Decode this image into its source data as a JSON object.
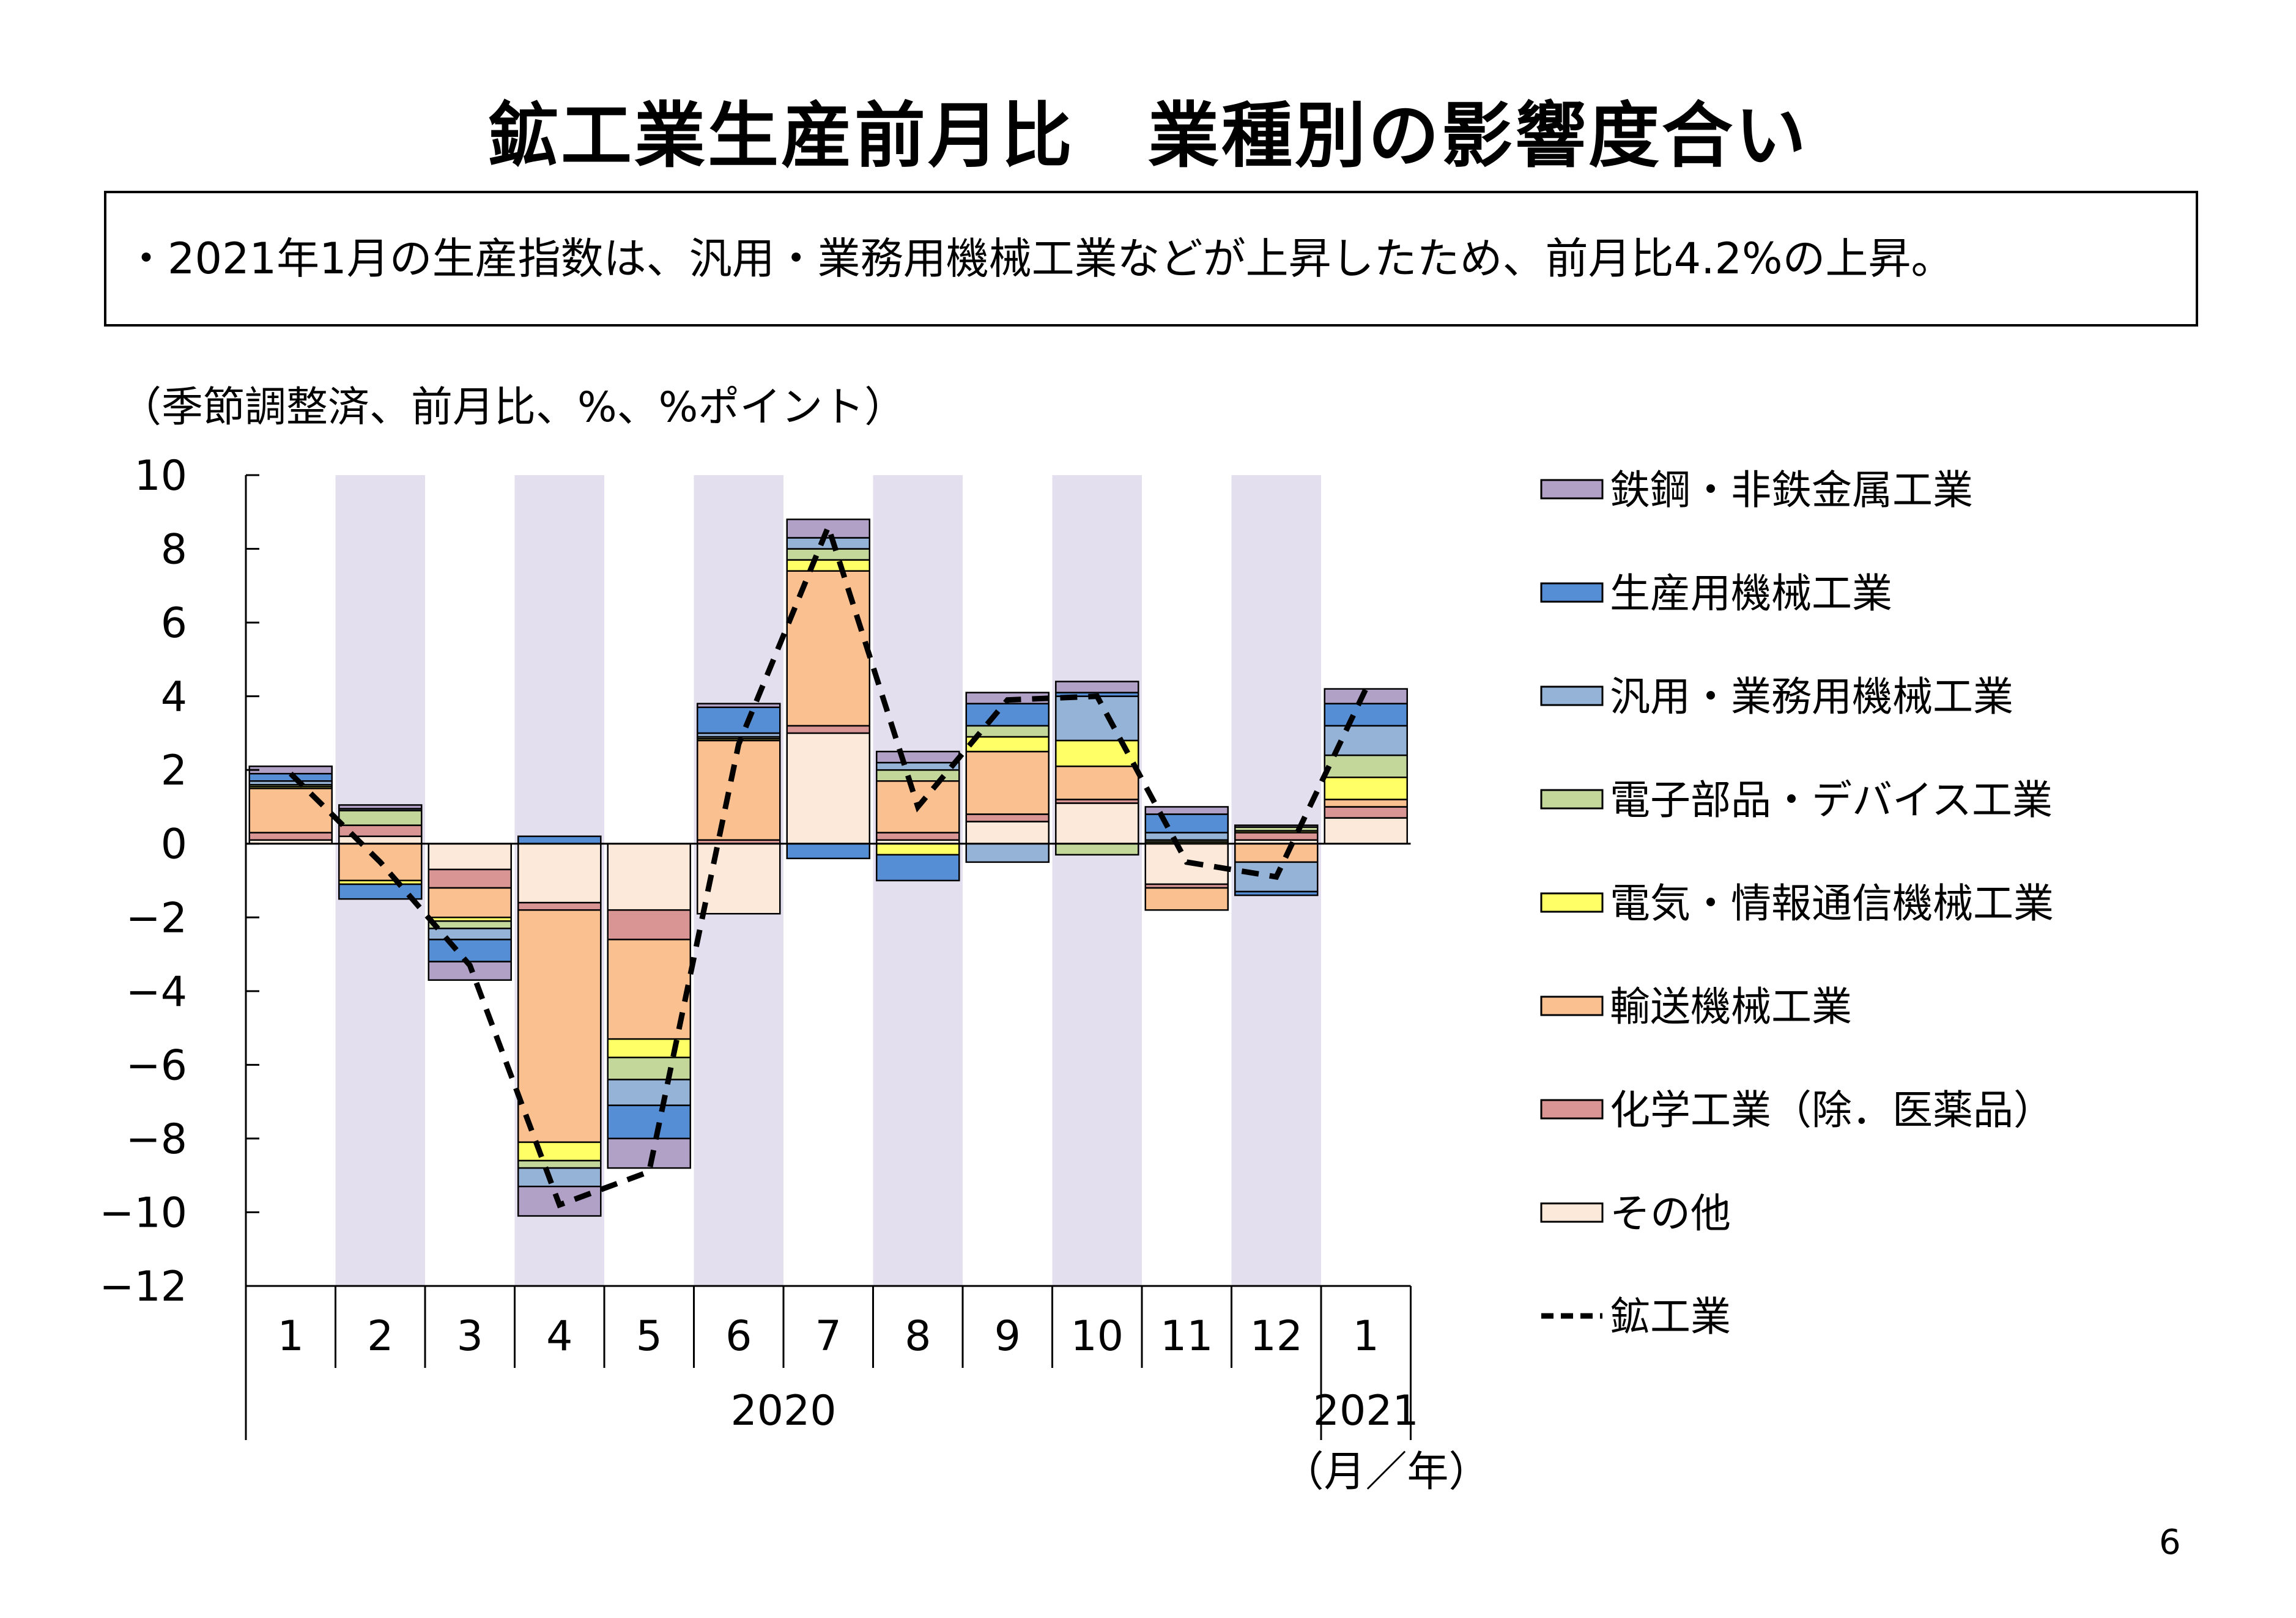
{
  "title": "鉱工業生産前月比　業種別の影響度合い",
  "summary": "・2021年1月の生産指数は、汎用・業務用機械工業などが上昇したため、前月比4.2%の上昇。",
  "units_note": "（季節調整済、前月比、%、%ポイント）",
  "page_number": "6",
  "chart_data": {
    "type": "bar",
    "stacked": true,
    "categories": [
      "1",
      "2",
      "3",
      "4",
      "5",
      "6",
      "7",
      "8",
      "9",
      "10",
      "11",
      "12",
      "1"
    ],
    "year_labels": [
      {
        "label": "2020",
        "from": 0,
        "to": 11
      },
      {
        "label": "2021",
        "from": 12,
        "to": 12
      }
    ],
    "xlabel": "（月／年）",
    "ylim": [
      -12,
      10
    ],
    "yticks": [
      10,
      8,
      6,
      4,
      2,
      0,
      -2,
      -4,
      -6,
      -8,
      -10,
      -12
    ],
    "shaded_categories": [
      1,
      3,
      5,
      7,
      9,
      11
    ],
    "shade_color": "#e3dfee",
    "series": [
      {
        "name": "その他",
        "color": "#fde9d9",
        "values": [
          0.1,
          0.2,
          -0.7,
          -1.6,
          -1.8,
          -1.9,
          3.0,
          0.1,
          0.6,
          1.1,
          -1.1,
          0.1,
          0.7
        ]
      },
      {
        "name": "化学工業（除．医薬品）",
        "color": "#d99594",
        "values": [
          0.2,
          0.3,
          -0.5,
          -0.2,
          -0.8,
          0.1,
          0.2,
          0.2,
          0.2,
          0.1,
          -0.1,
          0.2,
          0.3
        ]
      },
      {
        "name": "輸送機械工業",
        "color": "#fac090",
        "values": [
          1.2,
          -1.0,
          -0.8,
          -6.3,
          -2.7,
          2.7,
          4.2,
          1.4,
          1.7,
          0.9,
          -0.6,
          -0.5,
          0.2
        ]
      },
      {
        "name": "電気・情報通信機械工業",
        "color": "#ffff66",
        "values": [
          0.05,
          -0.1,
          -0.1,
          -0.5,
          -0.5,
          0.05,
          0.3,
          -0.3,
          0.4,
          0.7,
          0.05,
          0.05,
          0.6
        ]
      },
      {
        "name": "電子部品・デバイス工業",
        "color": "#c4d79b",
        "values": [
          0.05,
          0.4,
          -0.2,
          -0.2,
          -0.6,
          0.05,
          0.3,
          0.3,
          0.3,
          -0.3,
          0.05,
          0.1,
          0.6
        ]
      },
      {
        "name": "汎用・業務用機械工業",
        "color": "#95b3d7",
        "values": [
          0.1,
          0.05,
          -0.3,
          -0.5,
          -0.7,
          0.1,
          0.3,
          0.2,
          -0.5,
          1.2,
          0.2,
          -0.8,
          0.8
        ]
      },
      {
        "name": "生産用機械工業",
        "color": "#558ed5",
        "values": [
          0.2,
          -0.4,
          -0.6,
          0.2,
          -0.9,
          0.7,
          -0.4,
          -0.7,
          0.6,
          0.1,
          0.5,
          -0.1,
          0.6
        ]
      },
      {
        "name": "鉄鋼・非鉄金属工業",
        "color": "#b2a1c7",
        "values": [
          0.2,
          0.1,
          -0.5,
          -0.8,
          -0.8,
          0.1,
          0.5,
          0.3,
          0.3,
          0.3,
          0.2,
          0.05,
          0.4
        ]
      }
    ],
    "line": {
      "name": "鉱工業",
      "style": "dashed",
      "color": "#000000",
      "values": [
        1.9,
        -0.5,
        -3.3,
        -9.8,
        -8.9,
        2.7,
        8.6,
        1.0,
        3.9,
        4.0,
        -0.5,
        -0.9,
        4.2
      ]
    },
    "legend_order": [
      "鉄鋼・非鉄金属工業",
      "生産用機械工業",
      "汎用・業務用機械工業",
      "電子部品・デバイス工業",
      "電気・情報通信機械工業",
      "輸送機械工業",
      "化学工業（除．医薬品）",
      "その他",
      "鉱工業"
    ],
    "legend_position": "right"
  }
}
